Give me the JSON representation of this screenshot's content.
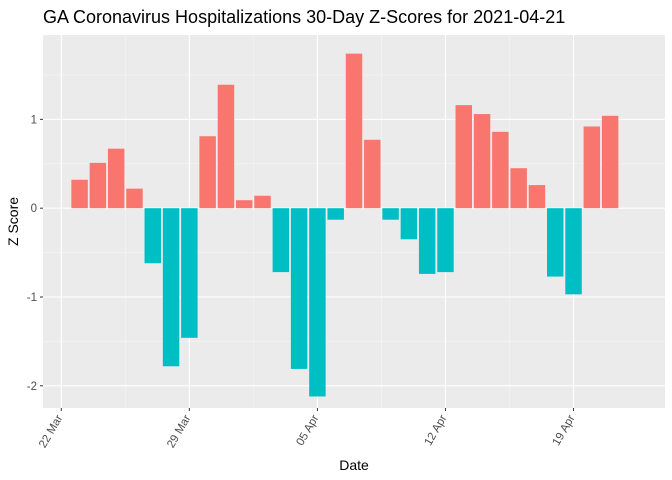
{
  "chart_data": {
    "type": "bar",
    "title": "GA Coronavirus Hospitalizations 30-Day Z-Scores for 2021-04-21",
    "xlabel": "Date",
    "ylabel": "Z Score",
    "ylim": [
      -2.25,
      1.95
    ],
    "y_ticks": [
      -2,
      -1,
      0,
      1
    ],
    "y_tick_labels": [
      "-2",
      "-1",
      "0",
      "1"
    ],
    "x_ticks": [
      "2021-03-22",
      "2021-03-29",
      "2021-04-05",
      "2021-04-12",
      "2021-04-19"
    ],
    "x_tick_labels": [
      "22 Mar",
      "29 Mar",
      "05 Apr",
      "12 Apr",
      "19 Apr"
    ],
    "x_range": [
      "2021-03-21",
      "2021-04-24"
    ],
    "grid": true,
    "legend": "none",
    "x_tick_rotation_deg": 60,
    "colors": {
      "positive": "#F8766D",
      "negative": "#00BFC4",
      "panel_background": "#EBEBEB",
      "grid_major": "#FFFFFF",
      "grid_minor": "#F5F5F5"
    },
    "dates": [
      "2021-03-23",
      "2021-03-24",
      "2021-03-25",
      "2021-03-26",
      "2021-03-27",
      "2021-03-28",
      "2021-03-29",
      "2021-03-30",
      "2021-03-31",
      "2021-04-01",
      "2021-04-02",
      "2021-04-03",
      "2021-04-04",
      "2021-04-05",
      "2021-04-06",
      "2021-04-07",
      "2021-04-08",
      "2021-04-09",
      "2021-04-10",
      "2021-04-11",
      "2021-04-12",
      "2021-04-13",
      "2021-04-14",
      "2021-04-15",
      "2021-04-16",
      "2021-04-17",
      "2021-04-18",
      "2021-04-19",
      "2021-04-20",
      "2021-04-21"
    ],
    "values": [
      0.32,
      0.51,
      0.67,
      0.22,
      -0.62,
      -1.78,
      -1.46,
      0.81,
      1.39,
      0.09,
      0.14,
      -0.72,
      -1.81,
      -2.12,
      -0.13,
      1.74,
      0.77,
      -0.13,
      -0.35,
      -0.74,
      -0.72,
      1.16,
      1.06,
      0.86,
      0.45,
      0.26,
      -0.77,
      -0.97,
      0.92,
      1.04
    ]
  }
}
